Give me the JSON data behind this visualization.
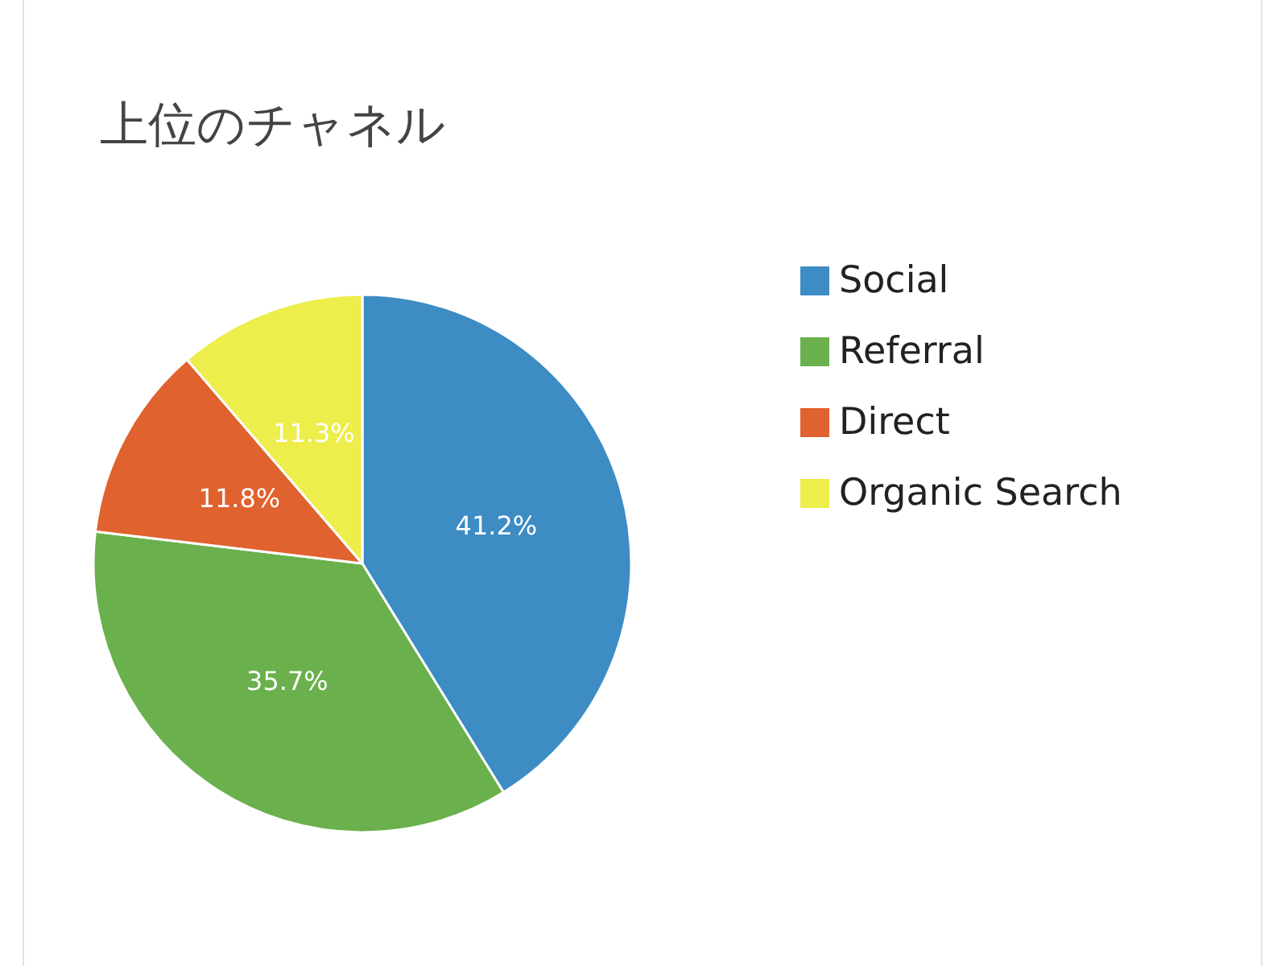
{
  "chart_data": {
    "type": "pie",
    "title": "上位のチャネル",
    "categories": [
      "Social",
      "Referral",
      "Direct",
      "Organic Search"
    ],
    "values": [
      41.2,
      35.7,
      11.8,
      11.3
    ],
    "colors": [
      "#3d8cc4",
      "#6ab04c",
      "#e0622f",
      "#eded4b"
    ],
    "value_labels": [
      "41.2%",
      "35.7%",
      "11.8%",
      "11.3%"
    ],
    "legend": "right"
  }
}
